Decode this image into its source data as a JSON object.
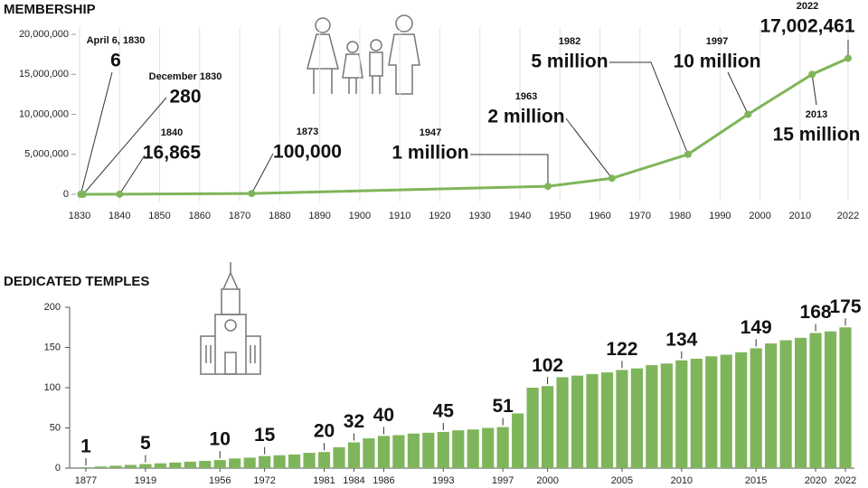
{
  "chart_data": [
    {
      "type": "line",
      "title": "MEMBERSHIP",
      "x": [
        1830.3,
        1830.9,
        1840,
        1873,
        1947,
        1963,
        1982,
        1997,
        2013,
        2022
      ],
      "values": [
        6,
        280,
        16865,
        100000,
        1000000,
        2000000,
        5000000,
        10000000,
        15000000,
        17002461
      ],
      "value_labels": [
        "6",
        "280",
        "16,865",
        "100,000",
        "1 million",
        "2 million",
        "5 million",
        "10 million",
        "15 million",
        "17,002,461"
      ],
      "point_labels": [
        "April 6, 1830",
        "December 1830",
        "1840",
        "1873",
        "1947",
        "1963",
        "1982",
        "1997",
        "2013",
        "2022"
      ],
      "color": "#7fb55a",
      "xlim": [
        1830,
        2022
      ],
      "xticks": [
        1830,
        1840,
        1850,
        1860,
        1870,
        1880,
        1890,
        1900,
        1910,
        1920,
        1930,
        1940,
        1950,
        1960,
        1970,
        1980,
        1990,
        2000,
        2010,
        2022
      ],
      "ylim": [
        0,
        20000000
      ],
      "yticks": [
        {
          "value": 0,
          "label": "0"
        },
        {
          "value": 5000000,
          "label": "5,000,000"
        },
        {
          "value": 10000000,
          "label": "10,000,000"
        },
        {
          "value": 15000000,
          "label": "15,000,000"
        },
        {
          "value": 20000000,
          "label": "20,000,000"
        }
      ],
      "grid": "x"
    },
    {
      "type": "bar",
      "title": "DEDICATED TEMPLES",
      "categories": [
        "1877",
        null,
        null,
        null,
        "1919",
        null,
        null,
        null,
        null,
        "1956",
        null,
        null,
        "1972",
        null,
        null,
        null,
        "1981",
        null,
        "1984",
        null,
        "1986",
        null,
        null,
        null,
        "1993",
        null,
        null,
        null,
        "1997",
        null,
        null,
        "2000",
        null,
        null,
        null,
        null,
        "2005",
        null,
        null,
        null,
        "2010",
        null,
        null,
        null,
        null,
        "2015",
        null,
        null,
        null,
        "2020",
        null,
        "2022"
      ],
      "values": [
        1,
        2,
        3,
        4,
        5,
        6,
        7,
        8,
        9,
        10,
        12,
        13,
        15,
        16,
        17,
        19,
        20,
        26,
        32,
        37,
        40,
        41,
        43,
        44,
        45,
        47,
        48,
        50,
        51,
        68,
        100,
        102,
        113,
        115,
        117,
        119,
        122,
        124,
        128,
        130,
        134,
        136,
        139,
        141,
        144,
        149,
        155,
        159,
        162,
        168,
        170,
        175
      ],
      "value_labels": [
        "1",
        null,
        null,
        null,
        "5",
        null,
        null,
        null,
        null,
        "10",
        null,
        null,
        "15",
        null,
        null,
        null,
        "20",
        null,
        "32",
        null,
        "40",
        null,
        null,
        null,
        "45",
        null,
        null,
        null,
        "51",
        null,
        null,
        "102",
        null,
        null,
        null,
        null,
        "122",
        null,
        null,
        null,
        "134",
        null,
        null,
        null,
        null,
        "149",
        null,
        null,
        null,
        "168",
        null,
        "175"
      ],
      "color": "#7fb55a",
      "ylim": [
        0,
        200
      ],
      "yticks": [
        0,
        50,
        100,
        150,
        200
      ],
      "grid": false
    }
  ]
}
